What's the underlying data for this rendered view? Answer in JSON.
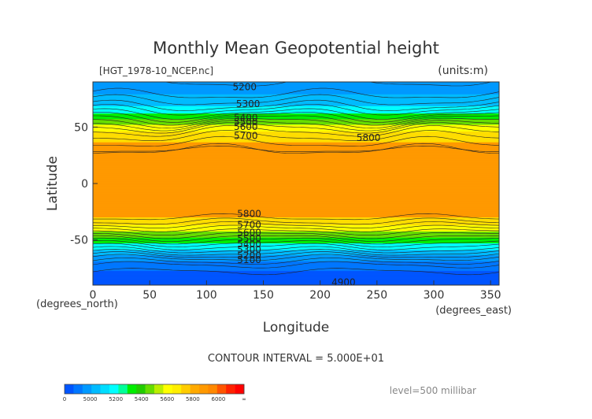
{
  "chart_data": {
    "type": "contour",
    "title": "Monthly Mean Geopotential height",
    "subtitle_left": "[HGT_1978-10_NCEP.nc]",
    "subtitle_right": "(units:m)",
    "xlabel": "Longitude",
    "ylabel": "Latitude",
    "x_unit_label": "(degrees_east)",
    "y_unit_label": "(degrees_north)",
    "xlim": [
      0,
      357.5
    ],
    "ylim": [
      -90,
      90
    ],
    "x_ticks": [
      0,
      50,
      100,
      150,
      200,
      250,
      300,
      350
    ],
    "y_ticks": [
      50,
      0,
      -50
    ],
    "contour_interval_text": "CONTOUR INTERVAL = 5.000E+01",
    "level_text": "level=500 millibar",
    "contour_labels": [
      {
        "text": "5200",
        "lon": 123,
        "lat": 86
      },
      {
        "text": "5300",
        "lon": 126,
        "lat": 71
      },
      {
        "text": "5400",
        "lon": 124,
        "lat": 59
      },
      {
        "text": "5500",
        "lon": 124,
        "lat": 55
      },
      {
        "text": "5600",
        "lon": 124,
        "lat": 51
      },
      {
        "text": "5700",
        "lon": 124,
        "lat": 43
      },
      {
        "text": "5800",
        "lon": 232,
        "lat": 41
      },
      {
        "text": "5800",
        "lon": 127,
        "lat": -26
      },
      {
        "text": "5700",
        "lon": 127,
        "lat": -36
      },
      {
        "text": "5600",
        "lon": 127,
        "lat": -43
      },
      {
        "text": "5500",
        "lon": 127,
        "lat": -48
      },
      {
        "text": "5400",
        "lon": 127,
        "lat": -53
      },
      {
        "text": "5300",
        "lon": 127,
        "lat": -58
      },
      {
        "text": "5200",
        "lon": 127,
        "lat": -63
      },
      {
        "text": "5100",
        "lon": 127,
        "lat": -67
      },
      {
        "text": "4900",
        "lon": 210,
        "lat": -87
      }
    ],
    "latitude_profile": [
      {
        "lat": 90,
        "value": 5150
      },
      {
        "lat": 80,
        "value": 5190
      },
      {
        "lat": 70,
        "value": 5280
      },
      {
        "lat": 62,
        "value": 5400
      },
      {
        "lat": 55,
        "value": 5540
      },
      {
        "lat": 48,
        "value": 5680
      },
      {
        "lat": 40,
        "value": 5770
      },
      {
        "lat": 30,
        "value": 5850
      },
      {
        "lat": 0,
        "value": 5880
      },
      {
        "lat": -25,
        "value": 5850
      },
      {
        "lat": -32,
        "value": 5780
      },
      {
        "lat": -38,
        "value": 5680
      },
      {
        "lat": -45,
        "value": 5560
      },
      {
        "lat": -52,
        "value": 5420
      },
      {
        "lat": -60,
        "value": 5280
      },
      {
        "lat": -66,
        "value": 5150
      },
      {
        "lat": -72,
        "value": 5050
      },
      {
        "lat": -80,
        "value": 4980
      },
      {
        "lat": -90,
        "value": 4950
      }
    ],
    "colorbar": {
      "ticks": [
        "0",
        "5000",
        "5200",
        "5400",
        "5600",
        "5800",
        "6000",
        "∞"
      ],
      "colors": [
        "#0055ff",
        "#0077ff",
        "#0099ff",
        "#00bbff",
        "#00ddff",
        "#00ffff",
        "#00ff99",
        "#00ee00",
        "#22cc00",
        "#66dd00",
        "#bbee00",
        "#ffff00",
        "#ffee00",
        "#ffcc00",
        "#ffaa00",
        "#ff9900",
        "#ff8800",
        "#ff5500",
        "#ff2200",
        "#ff0000"
      ]
    },
    "band_colors": [
      {
        "min": 0,
        "max": 5000,
        "color": "#0055ff"
      },
      {
        "min": 5000,
        "max": 5100,
        "color": "#0077ff"
      },
      {
        "min": 5100,
        "max": 5200,
        "color": "#0099ff"
      },
      {
        "min": 5200,
        "max": 5300,
        "color": "#00bbff"
      },
      {
        "min": 5300,
        "max": 5400,
        "color": "#00ffff"
      },
      {
        "min": 5400,
        "max": 5500,
        "color": "#00ee00"
      },
      {
        "min": 5500,
        "max": 5600,
        "color": "#66dd00"
      },
      {
        "min": 5600,
        "max": 5700,
        "color": "#ffff00"
      },
      {
        "min": 5700,
        "max": 5800,
        "color": "#ffdd00"
      },
      {
        "min": 5800,
        "max": 9999,
        "color": "#ff9900"
      }
    ]
  }
}
